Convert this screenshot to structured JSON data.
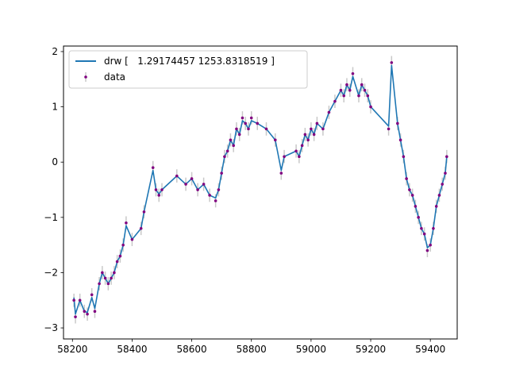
{
  "chart_data": {
    "type": "line",
    "xlim": [
      58170,
      59490
    ],
    "ylim": [
      -3.2,
      2.1
    ],
    "xticks": [
      58200,
      58400,
      58600,
      58800,
      59000,
      59200,
      59400
    ],
    "yticks": [
      -3,
      -2,
      -1,
      0,
      1,
      2
    ],
    "xtick_labels": [
      "58200",
      "58400",
      "58600",
      "58800",
      "59000",
      "59200",
      "59400"
    ],
    "ytick_labels": [
      "−3",
      "−2",
      "−1",
      "0",
      "1",
      "2"
    ],
    "legend": {
      "position": "upper-left",
      "entries": [
        {
          "label": "drw [   1.29174457 1253.8318519 ]"
        },
        {
          "label": "data"
        }
      ]
    },
    "colors": {
      "model_line": "#1f77b4",
      "data_points": "#800080",
      "error_bars": "#c8c8c8"
    },
    "series": [
      {
        "name": "data",
        "x": [
          58205,
          58210,
          58225,
          58240,
          58250,
          58265,
          58275,
          58290,
          58300,
          58310,
          58320,
          58330,
          58340,
          58350,
          58360,
          58370,
          58380,
          58400,
          58430,
          58440,
          58470,
          58480,
          58490,
          58500,
          58550,
          58580,
          58600,
          58620,
          58640,
          58660,
          58680,
          58690,
          58700,
          58710,
          58720,
          58730,
          58740,
          58750,
          58760,
          58770,
          58780,
          58790,
          58800,
          58820,
          58850,
          58880,
          58900,
          58910,
          58950,
          58960,
          58970,
          58980,
          58990,
          59000,
          59010,
          59020,
          59040,
          59060,
          59080,
          59100,
          59110,
          59120,
          59130,
          59140,
          59160,
          59170,
          59180,
          59190,
          59200,
          59260,
          59270,
          59290,
          59300,
          59310,
          59320,
          59330,
          59340,
          59350,
          59360,
          59370,
          59380,
          59390,
          59400,
          59410,
          59420,
          59430,
          59440,
          59450,
          59455
        ],
        "y": [
          -2.5,
          -2.8,
          -2.5,
          -2.7,
          -2.75,
          -2.4,
          -2.7,
          -2.2,
          -2.0,
          -2.1,
          -2.2,
          -2.1,
          -2.0,
          -1.8,
          -1.7,
          -1.5,
          -1.1,
          -1.4,
          -1.2,
          -0.9,
          -0.1,
          -0.5,
          -0.6,
          -0.5,
          -0.25,
          -0.4,
          -0.3,
          -0.5,
          -0.4,
          -0.6,
          -0.7,
          -0.5,
          -0.2,
          0.1,
          0.2,
          0.4,
          0.3,
          0.6,
          0.5,
          0.8,
          0.7,
          0.6,
          0.8,
          0.7,
          0.6,
          0.4,
          -0.2,
          0.1,
          0.2,
          0.1,
          0.3,
          0.5,
          0.4,
          0.6,
          0.5,
          0.7,
          0.6,
          0.9,
          1.1,
          1.3,
          1.2,
          1.4,
          1.3,
          1.6,
          1.2,
          1.4,
          1.3,
          1.2,
          1.0,
          0.6,
          1.8,
          0.7,
          0.4,
          0.1,
          -0.3,
          -0.5,
          -0.6,
          -0.8,
          -1.0,
          -1.2,
          -1.3,
          -1.6,
          -1.5,
          -1.2,
          -0.8,
          -0.6,
          -0.4,
          -0.2,
          0.1
        ]
      },
      {
        "name": "drw [   1.29174457 1253.8318519 ]",
        "x": [
          58205,
          58210,
          58225,
          58240,
          58250,
          58265,
          58275,
          58290,
          58300,
          58310,
          58320,
          58330,
          58340,
          58350,
          58360,
          58370,
          58380,
          58400,
          58430,
          58440,
          58470,
          58480,
          58490,
          58500,
          58550,
          58580,
          58600,
          58620,
          58640,
          58660,
          58680,
          58690,
          58700,
          58710,
          58720,
          58730,
          58740,
          58750,
          58760,
          58770,
          58780,
          58790,
          58800,
          58820,
          58850,
          58880,
          58900,
          58910,
          58950,
          58960,
          58970,
          58980,
          58990,
          59000,
          59010,
          59020,
          59040,
          59060,
          59080,
          59100,
          59110,
          59120,
          59130,
          59140,
          59160,
          59170,
          59180,
          59190,
          59200,
          59260,
          59270,
          59290,
          59300,
          59310,
          59320,
          59330,
          59340,
          59350,
          59360,
          59370,
          59380,
          59390,
          59400,
          59410,
          59420,
          59430,
          59440,
          59450,
          59455
        ],
        "y": [
          -2.45,
          -2.75,
          -2.5,
          -2.7,
          -2.72,
          -2.45,
          -2.65,
          -2.2,
          -2.0,
          -2.1,
          -2.2,
          -2.1,
          -2.0,
          -1.8,
          -1.7,
          -1.5,
          -1.15,
          -1.4,
          -1.2,
          -0.9,
          -0.15,
          -0.5,
          -0.58,
          -0.5,
          -0.25,
          -0.4,
          -0.3,
          -0.5,
          -0.4,
          -0.6,
          -0.65,
          -0.5,
          -0.2,
          0.1,
          0.2,
          0.4,
          0.3,
          0.6,
          0.5,
          0.75,
          0.7,
          0.6,
          0.75,
          0.7,
          0.6,
          0.4,
          -0.15,
          0.1,
          0.2,
          0.1,
          0.3,
          0.5,
          0.4,
          0.6,
          0.5,
          0.7,
          0.6,
          0.9,
          1.1,
          1.3,
          1.2,
          1.4,
          1.3,
          1.55,
          1.2,
          1.4,
          1.3,
          1.2,
          1.0,
          0.65,
          1.75,
          0.7,
          0.4,
          0.1,
          -0.3,
          -0.5,
          -0.6,
          -0.8,
          -1.0,
          -1.2,
          -1.3,
          -1.55,
          -1.5,
          -1.2,
          -0.8,
          -0.6,
          -0.4,
          -0.2,
          0.1
        ]
      }
    ]
  }
}
